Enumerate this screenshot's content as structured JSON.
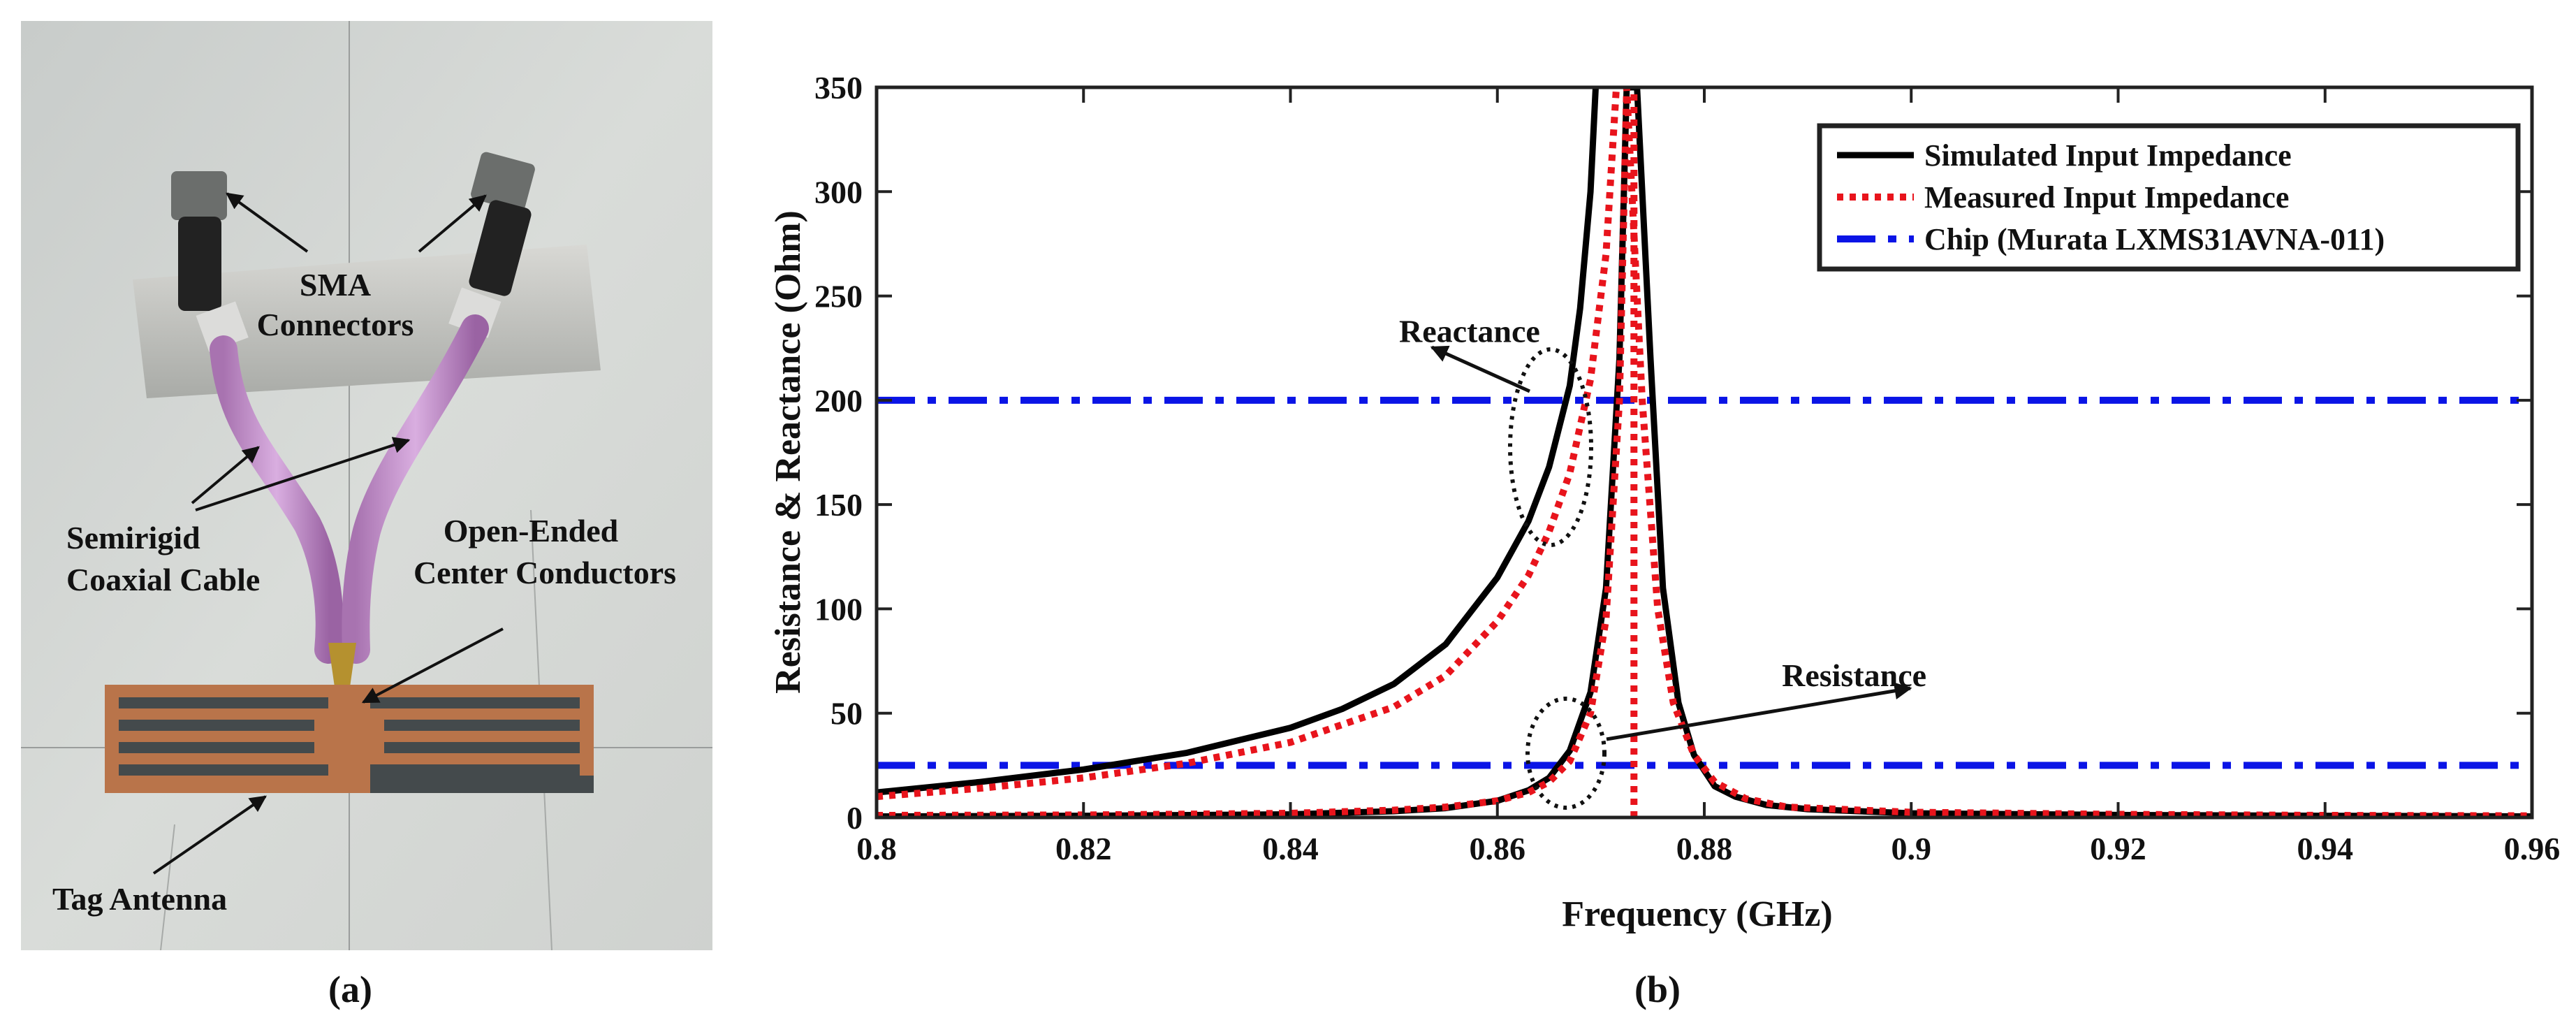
{
  "photo": {
    "annotations": {
      "sma": [
        "SMA",
        "Connectors"
      ],
      "cable": [
        "Semirigid",
        "Coaxial Cable"
      ],
      "conductors": [
        "Open-Ended",
        "Center Conductors"
      ],
      "tag": "Tag Antenna"
    },
    "caption": "(a)"
  },
  "chart_caption": "(b)",
  "chart_data": {
    "type": "line",
    "xlabel": "Frequency (GHz)",
    "ylabel": "Resistance & Reactance (Ohm)",
    "xlim": [
      0.8,
      0.96
    ],
    "ylim": [
      0,
      350
    ],
    "xticks": [
      0.8,
      0.82,
      0.84,
      0.86,
      0.88,
      0.9,
      0.92,
      0.94,
      0.96
    ],
    "xtick_labels": [
      "0.8",
      "0.82",
      "0.84",
      "0.86",
      "0.88",
      "0.9",
      "0.92",
      "0.94",
      "0.96"
    ],
    "yticks": [
      0,
      50,
      100,
      150,
      200,
      250,
      300,
      350
    ],
    "ytick_labels": [
      "0",
      "50",
      "100",
      "150",
      "200",
      "250",
      "300",
      "350"
    ],
    "legend_position": "top-right",
    "legend": [
      {
        "name": "Simulated Input Impedance",
        "color": "#000000",
        "style": "solid"
      },
      {
        "name": "Measured Input Impedance",
        "color": "#e8141c",
        "style": "dotted"
      },
      {
        "name": "Chip (Murata LXMS31AVNA-011)",
        "color": "#0a14e6",
        "style": "dashdot"
      }
    ],
    "series": [
      {
        "name": "Simulated Reactance",
        "legend": 0,
        "x": [
          0.8,
          0.81,
          0.82,
          0.83,
          0.84,
          0.845,
          0.85,
          0.855,
          0.86,
          0.863,
          0.865,
          0.867,
          0.868,
          0.869,
          0.8695
        ],
        "y": [
          12,
          17,
          23,
          31,
          43,
          52,
          64,
          83,
          115,
          142,
          168,
          207,
          244,
          300,
          350
        ]
      },
      {
        "name": "Measured Reactance",
        "legend": 1,
        "x": [
          0.8,
          0.81,
          0.82,
          0.83,
          0.84,
          0.85,
          0.855,
          0.86,
          0.863,
          0.865,
          0.867,
          0.869,
          0.8705,
          0.8715
        ],
        "y": [
          10,
          14,
          19,
          26,
          36,
          53,
          68,
          94,
          116,
          137,
          165,
          210,
          270,
          350
        ]
      },
      {
        "name": "Simulated Resistance",
        "legend": 0,
        "x": [
          0.8,
          0.82,
          0.84,
          0.85,
          0.855,
          0.86,
          0.863,
          0.865,
          0.867,
          0.869,
          0.8705,
          0.8718,
          0.8725,
          0.8735,
          0.8748,
          0.876,
          0.8775,
          0.879,
          0.881,
          0.883,
          0.886,
          0.89,
          0.9,
          0.92,
          0.94,
          0.96
        ],
        "y": [
          0.5,
          0.8,
          1.5,
          3,
          4.5,
          8,
          13,
          19,
          32,
          60,
          110,
          220,
          350,
          350,
          220,
          110,
          55,
          30,
          15,
          10,
          6,
          4,
          2,
          1.2,
          0.8,
          0.5
        ]
      },
      {
        "name": "Measured Resistance",
        "legend": 1,
        "x": [
          0.8,
          0.82,
          0.84,
          0.85,
          0.855,
          0.86,
          0.863,
          0.865,
          0.867,
          0.869,
          0.8705,
          0.8718,
          0.8725,
          0.874,
          0.8755,
          0.877,
          0.879,
          0.881,
          0.884,
          0.888,
          0.9,
          0.92,
          0.94,
          0.96
        ],
        "y": [
          1,
          1.2,
          2,
          3.5,
          5,
          8,
          12,
          17,
          27,
          50,
          95,
          200,
          350,
          200,
          100,
          55,
          30,
          17,
          9,
          5,
          2.5,
          1.5,
          1,
          0.8
        ]
      },
      {
        "name": "Measured Resonance",
        "legend": 1,
        "x": [
          0.8732,
          0.8732
        ],
        "y": [
          0,
          350
        ]
      },
      {
        "name": "Chip Reactance",
        "legend": 2,
        "x": [
          0.8,
          0.96
        ],
        "y": [
          200,
          200
        ]
      },
      {
        "name": "Chip Resistance",
        "legend": 2,
        "x": [
          0.8,
          0.96
        ],
        "y": [
          25,
          25
        ]
      }
    ],
    "annotations": [
      {
        "text": "Reactance",
        "x": 0.8505,
        "y": 228
      },
      {
        "text": "Resistance",
        "x": 0.8875,
        "y": 63
      }
    ]
  }
}
